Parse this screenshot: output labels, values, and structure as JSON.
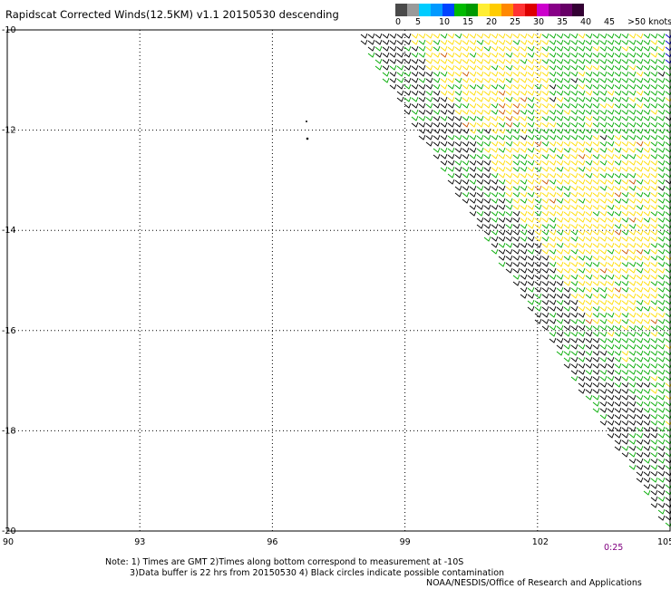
{
  "title": "Rapidscat Corrected Winds(12.5KM) v1.1 20150530 descending",
  "legend": {
    "labels": [
      "0",
      "5",
      "10",
      "15",
      "20",
      "25",
      "30",
      "35",
      "40",
      "45",
      ">50 knots"
    ],
    "colors": [
      "#4a4a4a",
      "#9a9a9a",
      "#00ccff",
      "#0099ff",
      "#0044ff",
      "#00bb00",
      "#009900",
      "#ffee33",
      "#ffcc00",
      "#ff8800",
      "#ff3333",
      "#dd0000",
      "#cc00cc",
      "#880088",
      "#660066",
      "#330033"
    ]
  },
  "map": {
    "lon_ticks": [
      "90",
      "93",
      "96",
      "99",
      "102",
      "105"
    ],
    "lat_ticks": [
      "-10",
      "-12",
      "-14",
      "-16",
      "-18",
      "-20"
    ],
    "lon_range": [
      90,
      105
    ],
    "lat_range": [
      -20,
      -10
    ],
    "grid": "dotted",
    "swath_edge": "diagonal from 97.5 at -10 to 105 at -19.6",
    "wind_colors": {
      "calm": "#000000",
      "moderate": "#00aa00",
      "strong": "#ffdd00",
      "very_strong": "#cc5500",
      "edge": "#0000cc"
    },
    "time_label": "0:25"
  },
  "notes": {
    "line1": "Note: 1) Times are GMT 2)Times along bottom correspond to measurement at -10S",
    "line2": "3)Data buffer is 22 hrs from 20150530 4) Black circles indicate possible contamination"
  },
  "credit": "NOAA/NESDIS/Office of Research and Applications"
}
